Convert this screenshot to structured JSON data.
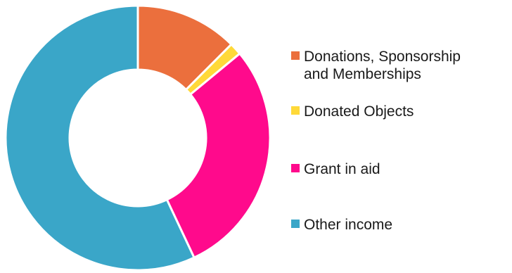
{
  "chart_data": {
    "type": "donut",
    "title": "",
    "legend_position": "right",
    "series": [
      {
        "name": "Donations, Sponsorship and Memberships",
        "legend_lines": [
          "Donations, Sponsorship",
          "and Memberships"
        ],
        "value": 12.5,
        "color": "#EB6F3D"
      },
      {
        "name": "Donated Objects",
        "legend_lines": [
          "Donated Objects"
        ],
        "value": 1.5,
        "color": "#FFD939"
      },
      {
        "name": "Grant in aid",
        "legend_lines": [
          "Grant in aid"
        ],
        "value": 29.0,
        "color": "#FF0A8C"
      },
      {
        "name": "Other income",
        "legend_lines": [
          "Other income"
        ],
        "value": 57.0,
        "color": "#3AA6C8"
      }
    ]
  }
}
